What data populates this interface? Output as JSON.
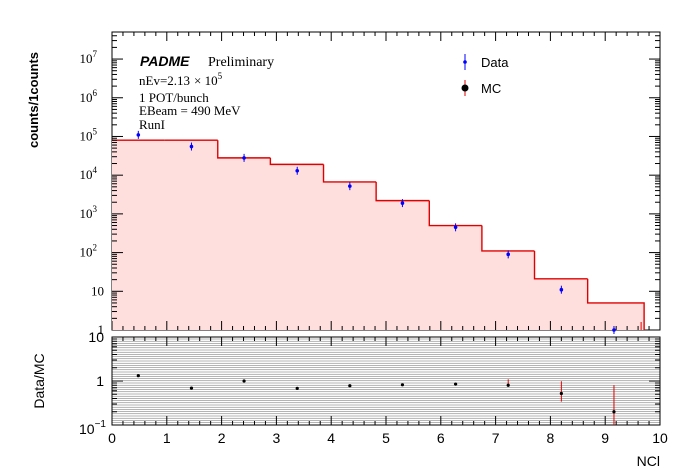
{
  "chart_data": [
    {
      "type": "histogram",
      "ylabel": "counts/1counts",
      "yscale": "log",
      "ylim": [
        1,
        50000000
      ],
      "xlim": [
        0,
        10
      ],
      "legend": {
        "placement": "top-right",
        "entries": [
          {
            "label": "Data",
            "marker": "point-with-error",
            "color": "#0000ff"
          },
          {
            "label": "MC",
            "marker": "filled-circle",
            "color": "#000000"
          }
        ]
      },
      "annotations": {
        "brand": "PADME",
        "status": "Preliminary",
        "nev_prefix": "nEv=2.13",
        "nev_times": "× 10",
        "nev_exp": "5",
        "pot": "1 POT/bunch",
        "ebeam": "EBeam = 490 MeV",
        "run": "RunI"
      },
      "y_ticks": [
        {
          "value": 10000000,
          "base": "10",
          "exp": "7"
        },
        {
          "value": 1000000,
          "base": "10",
          "exp": "6"
        },
        {
          "value": 100000,
          "base": "10",
          "exp": "5"
        },
        {
          "value": 10000,
          "base": "10",
          "exp": "4"
        },
        {
          "value": 1000,
          "base": "10",
          "exp": "3"
        },
        {
          "value": 100,
          "base": "10",
          "exp": "2"
        },
        {
          "value": 10,
          "base": "10",
          "exp": ""
        },
        {
          "value": 1,
          "base": "1",
          "exp": ""
        }
      ],
      "series": [
        {
          "name": "MC",
          "style": "filled-step",
          "line_color": "#e00000",
          "fill_color": "#ffdede",
          "bins": [
            {
              "x0": 0,
              "x1": 0.96,
              "y": 80000
            },
            {
              "x0": 0.96,
              "x1": 1.93,
              "y": 80000
            },
            {
              "x0": 1.93,
              "x1": 2.89,
              "y": 28000
            },
            {
              "x0": 2.89,
              "x1": 3.86,
              "y": 19000
            },
            {
              "x0": 3.86,
              "x1": 4.82,
              "y": 6700
            },
            {
              "x0": 4.82,
              "x1": 5.79,
              "y": 2200
            },
            {
              "x0": 5.79,
              "x1": 6.75,
              "y": 500
            },
            {
              "x0": 6.75,
              "x1": 7.71,
              "y": 110
            },
            {
              "x0": 7.71,
              "x1": 8.68,
              "y": 21
            },
            {
              "x0": 8.68,
              "x1": 9.71,
              "y": 5
            }
          ]
        },
        {
          "name": "Data",
          "style": "points",
          "color": "#0000ff",
          "x": [
            0.48,
            1.45,
            2.41,
            3.38,
            4.34,
            5.3,
            6.27,
            7.23,
            8.2,
            9.16
          ],
          "y": [
            110000,
            55000,
            28000,
            13000,
            5200,
            1900,
            450,
            90,
            11,
            1
          ]
        }
      ]
    },
    {
      "type": "scatter",
      "ylabel": "Data/MC",
      "xlabel": "NCl",
      "yscale": "log",
      "ylim": [
        0.1,
        10
      ],
      "xlim": [
        0,
        10
      ],
      "band": {
        "ylim": [
          0.1,
          10
        ],
        "color": "#000000"
      },
      "x_ticks": [
        "0",
        "1",
        "2",
        "3",
        "4",
        "5",
        "6",
        "7",
        "8",
        "9",
        "10"
      ],
      "y_ticks": [
        {
          "value": 10,
          "base": "10",
          "exp": ""
        },
        {
          "value": 1,
          "base": "1",
          "exp": ""
        },
        {
          "value": 0.1,
          "base": "10",
          "exp": "−1"
        }
      ],
      "series": [
        {
          "name": "",
          "color": "#000000",
          "x": [
            0.48,
            1.45,
            2.41,
            3.38,
            4.34,
            5.3,
            6.27,
            7.23,
            8.2,
            9.16
          ],
          "y": [
            1.32,
            0.69,
            1.0,
            0.68,
            0.78,
            0.82,
            0.85,
            0.8,
            0.52,
            0.2
          ],
          "err_lo": [
            0.0,
            0.0,
            0.0,
            0.0,
            0.0,
            0.0,
            0.0,
            0.06,
            0.18,
            0.2
          ],
          "err_hi": [
            0.0,
            0.0,
            0.0,
            0.0,
            0.0,
            0.0,
            0.0,
            0.06,
            0.2,
            0.3
          ],
          "err_color": "#e00000"
        }
      ]
    }
  ]
}
